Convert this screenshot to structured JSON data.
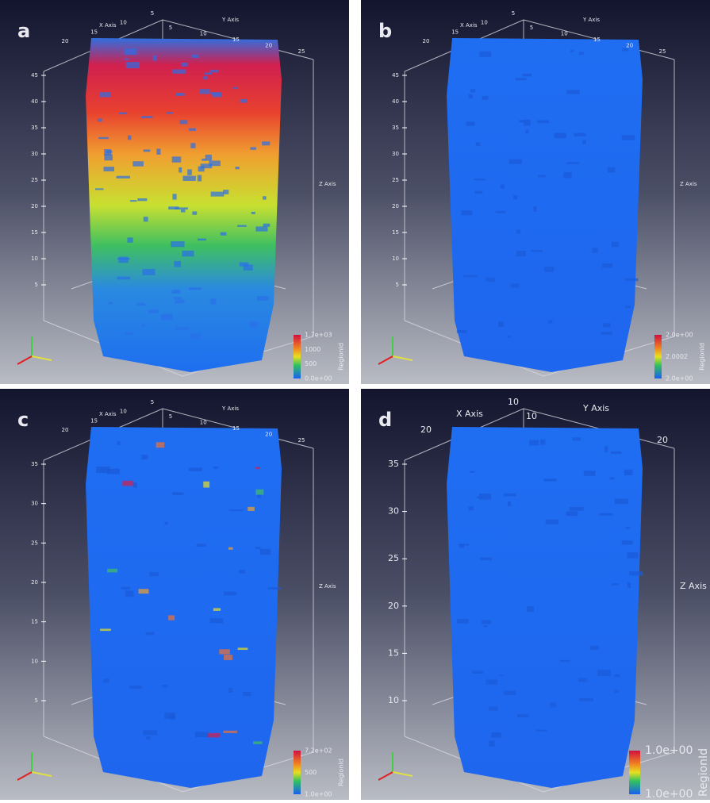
{
  "panels": [
    {
      "label": "a",
      "x_axis_label": "X Axis",
      "y_axis_label": "Y Axis",
      "z_axis_label": "Z Axis",
      "x_ticks": [
        "20",
        "15",
        "10",
        "5"
      ],
      "y_ticks": [
        "5",
        "10",
        "15",
        "20",
        "25"
      ],
      "z_ticks": [
        "45",
        "40",
        "35",
        "30",
        "25",
        "20",
        "15",
        "10",
        "5"
      ],
      "colorbar": {
        "title": "RegionId",
        "labels": [
          "1.7e+03",
          "1000",
          "500",
          "0.0e+00"
        ]
      }
    },
    {
      "label": "b",
      "x_axis_label": "X Axis",
      "y_axis_label": "Y Axis",
      "z_axis_label": "Z Axis",
      "x_ticks": [
        "20",
        "15",
        "10",
        "5"
      ],
      "y_ticks": [
        "5",
        "10",
        "15",
        "20",
        "25"
      ],
      "z_ticks": [
        "45",
        "40",
        "35",
        "30",
        "25",
        "20",
        "15",
        "10",
        "5"
      ],
      "colorbar": {
        "title": "RegionId",
        "labels": [
          "2.0e+00",
          "2.0002",
          "2.0e+00"
        ]
      }
    },
    {
      "label": "c",
      "x_axis_label": "X Axis",
      "y_axis_label": "Y Axis",
      "z_axis_label": "Z Axis",
      "x_ticks": [
        "20",
        "15",
        "10",
        "5"
      ],
      "y_ticks": [
        "5",
        "10",
        "15",
        "20",
        "25"
      ],
      "z_ticks": [
        "35",
        "30",
        "25",
        "20",
        "15",
        "10",
        "5"
      ],
      "colorbar": {
        "title": "RegionId",
        "labels": [
          "7.2e+02",
          "500",
          "1.0e+00"
        ]
      }
    },
    {
      "label": "d",
      "x_axis_label": "X Axis",
      "y_axis_label": "Y Axis",
      "z_axis_label": "Z Axis",
      "x_ticks": [
        "20",
        "10"
      ],
      "y_ticks": [
        "10",
        "20"
      ],
      "z_ticks": [
        "35",
        "30",
        "25",
        "20",
        "15",
        "10"
      ],
      "colorbar": {
        "title": "RegionId",
        "labels": [
          "1.0e+00",
          "1.0e+00"
        ]
      }
    }
  ]
}
